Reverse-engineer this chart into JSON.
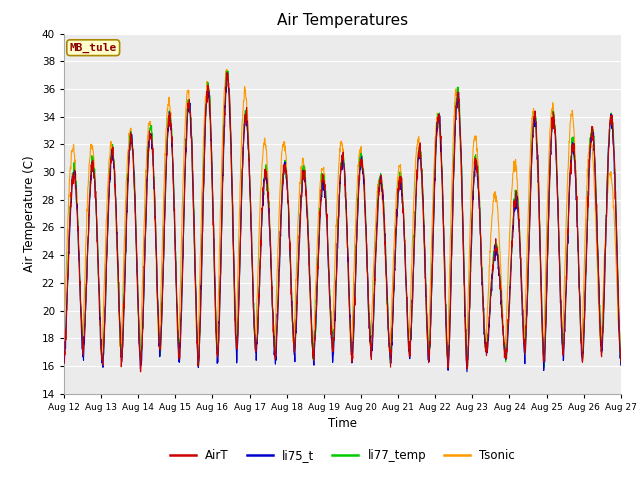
{
  "title": "Air Temperatures",
  "xlabel": "Time",
  "ylabel": "Air Temperature (C)",
  "ylim": [
    14,
    40
  ],
  "yticks": [
    14,
    16,
    18,
    20,
    22,
    24,
    26,
    28,
    30,
    32,
    34,
    36,
    38,
    40
  ],
  "site_label": "MB_tule",
  "colors": {
    "AirT": "#cc0000",
    "li75_t": "#0000cc",
    "li77_temp": "#00cc00",
    "Tsonic": "#ff9900"
  },
  "legend_entries": [
    "AirT",
    "li75_t",
    "li77_temp",
    "Tsonic"
  ],
  "start_day": 12,
  "end_day": 27,
  "background_color": "#ebebeb",
  "grid_color": "#ffffff",
  "fig_width": 6.4,
  "fig_height": 4.8,
  "dpi": 100
}
